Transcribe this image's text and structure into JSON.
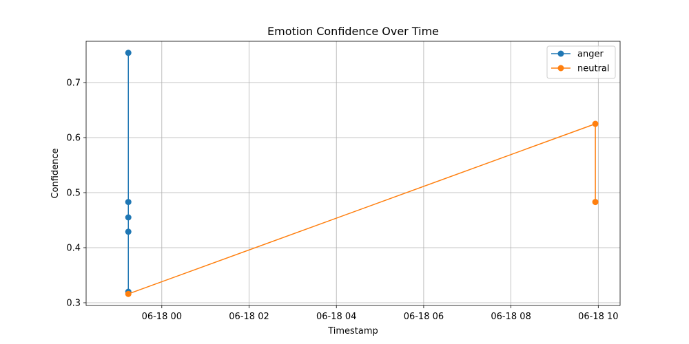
{
  "chart_data": {
    "type": "line",
    "title": "Emotion Confidence Over Time",
    "xlabel": "Timestamp",
    "ylabel": "Confidence",
    "x_type": "datetime",
    "xlim": [
      "2025-06-17 22:16",
      "2025-06-18 10:30"
    ],
    "ylim": [
      0.295,
      0.775
    ],
    "x_ticks": [
      {
        "value": "2025-06-18 00:00",
        "label": "06-18 00"
      },
      {
        "value": "2025-06-18 02:00",
        "label": "06-18 02"
      },
      {
        "value": "2025-06-18 04:00",
        "label": "06-18 04"
      },
      {
        "value": "2025-06-18 06:00",
        "label": "06-18 06"
      },
      {
        "value": "2025-06-18 08:00",
        "label": "06-18 08"
      },
      {
        "value": "2025-06-18 10:00",
        "label": "06-18 10"
      }
    ],
    "y_ticks": [
      0.3,
      0.4,
      0.5,
      0.6,
      0.7
    ],
    "grid": true,
    "legend_position": "top-right",
    "series": [
      {
        "name": "anger",
        "color": "#1f77b4",
        "points": [
          {
            "x": "2025-06-17 23:14",
            "y": 0.754
          },
          {
            "x": "2025-06-17 23:14",
            "y": 0.483
          },
          {
            "x": "2025-06-17 23:14",
            "y": 0.455
          },
          {
            "x": "2025-06-17 23:14",
            "y": 0.429
          },
          {
            "x": "2025-06-17 23:14",
            "y": 0.32
          }
        ]
      },
      {
        "name": "neutral",
        "color": "#ff7f0e",
        "points": [
          {
            "x": "2025-06-17 23:14",
            "y": 0.316
          },
          {
            "x": "2025-06-18 09:56",
            "y": 0.625
          },
          {
            "x": "2025-06-18 09:56",
            "y": 0.483
          }
        ]
      }
    ]
  }
}
